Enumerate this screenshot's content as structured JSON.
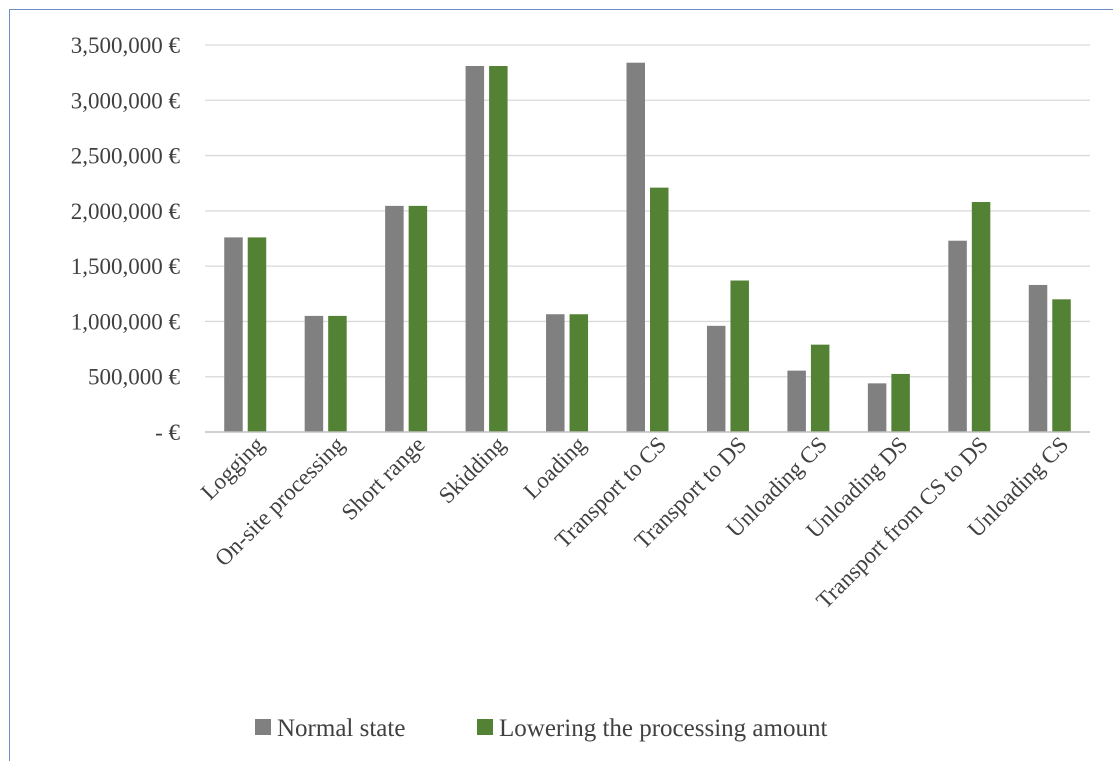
{
  "chart_data": {
    "type": "bar",
    "categories": [
      "Logging",
      "On-site processing",
      "Short range",
      "Skidding",
      "Loading",
      "Transport to CS",
      "Transport to DS",
      "Unloading CS",
      "Unloading DS",
      "Transport from CS to DS",
      "Unloading CS"
    ],
    "series": [
      {
        "name": "Normal state",
        "color": "#808080",
        "values": [
          1760000,
          1050000,
          2045000,
          3310000,
          1065000,
          3340000,
          960000,
          555000,
          440000,
          1730000,
          1330000
        ]
      },
      {
        "name": "Lowering the processing amount",
        "color": "#548235",
        "values": [
          1760000,
          1050000,
          2045000,
          3310000,
          1065000,
          2210000,
          1370000,
          790000,
          525000,
          2080000,
          1200000
        ]
      }
    ],
    "ylim": [
      0,
      3500000
    ],
    "y_ticks": [
      {
        "value": 0,
        "label": "-   €"
      },
      {
        "value": 500000,
        "label": "500,000 €"
      },
      {
        "value": 1000000,
        "label": "1,000,000 €"
      },
      {
        "value": 1500000,
        "label": "1,500,000 €"
      },
      {
        "value": 2000000,
        "label": "2,000,000 €"
      },
      {
        "value": 2500000,
        "label": "2,500,000 €"
      },
      {
        "value": 3000000,
        "label": "3,000,000 €"
      },
      {
        "value": 3500000,
        "label": "3,500,000 €"
      }
    ],
    "title": "",
    "xlabel": "",
    "ylabel": "",
    "grid": true,
    "legend_position": "bottom",
    "gridline_color": "#d9d9d9",
    "axis_color": "#bfbfbf"
  }
}
